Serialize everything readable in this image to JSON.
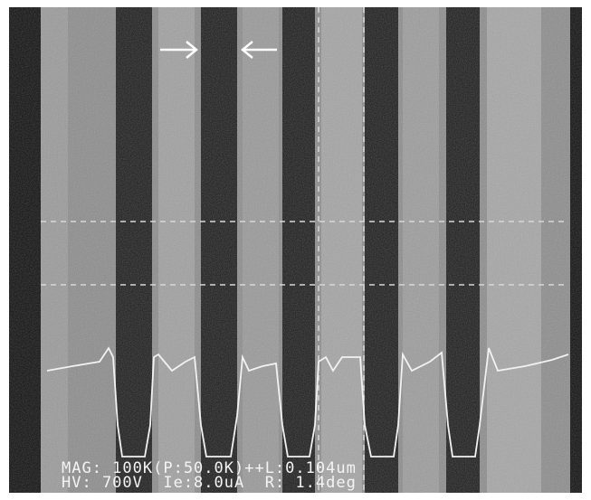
{
  "overlay": {
    "line1": "MAG: 100K(P:50.0K)++L:0.104um",
    "line2": "HV: 700V  Ie:8.0uA  R: 1.4deg"
  }
}
